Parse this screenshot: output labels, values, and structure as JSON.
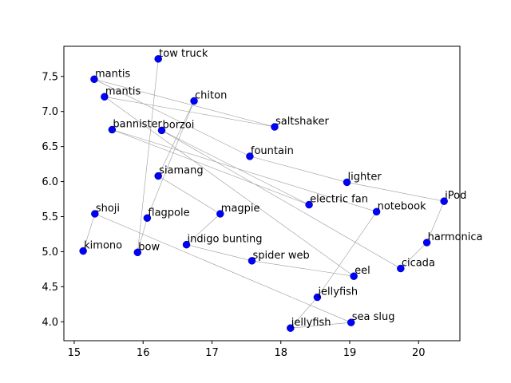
{
  "chart_data": {
    "type": "scatter",
    "title": "",
    "xlabel": "",
    "ylabel": "",
    "xlim": [
      14.85,
      20.6
    ],
    "ylim": [
      3.73,
      7.93
    ],
    "xticks": [
      15,
      16,
      17,
      18,
      19,
      20
    ],
    "yticks": [
      4.0,
      4.5,
      5.0,
      5.5,
      6.0,
      6.5,
      7.0,
      7.5
    ],
    "xtick_labels": [
      "15",
      "16",
      "17",
      "18",
      "19",
      "20"
    ],
    "ytick_labels": [
      "4.0",
      "4.5",
      "5.0",
      "5.5",
      "6.0",
      "6.5",
      "7.0",
      "7.5"
    ],
    "grid": false,
    "point_color": "#0000ff",
    "line_color": "#9a9a9a",
    "points": [
      {
        "label": "tow truck",
        "x": 16.22,
        "y": 7.75
      },
      {
        "label": "bow",
        "x": 15.92,
        "y": 4.99
      },
      {
        "label": "flagpole",
        "x": 16.06,
        "y": 5.48
      },
      {
        "label": "chiton",
        "x": 16.74,
        "y": 7.15
      },
      {
        "label": "siamang",
        "x": 16.22,
        "y": 6.08
      },
      {
        "label": "magpie",
        "x": 17.12,
        "y": 5.54
      },
      {
        "label": "indigo bunting",
        "x": 16.63,
        "y": 5.1
      },
      {
        "label": "spider web",
        "x": 17.58,
        "y": 4.87
      },
      {
        "label": "eel",
        "x": 19.06,
        "y": 4.65
      },
      {
        "label": "mantis",
        "x": 15.44,
        "y": 7.21
      },
      {
        "label": "saltshaker",
        "x": 17.91,
        "y": 6.78
      },
      {
        "label": "mantis",
        "x": 15.29,
        "y": 7.46
      },
      {
        "label": "fountain",
        "x": 17.55,
        "y": 6.36
      },
      {
        "label": "lighter",
        "x": 18.96,
        "y": 5.99
      },
      {
        "label": "iPod",
        "x": 20.37,
        "y": 5.72
      },
      {
        "label": "harmonica",
        "x": 20.12,
        "y": 5.13
      },
      {
        "label": "cicada",
        "x": 19.74,
        "y": 4.76
      },
      {
        "label": "borzoi",
        "x": 16.27,
        "y": 6.73
      },
      {
        "label": "electric fan",
        "x": 18.41,
        "y": 5.67
      },
      {
        "label": "bannister",
        "x": 15.55,
        "y": 6.74
      },
      {
        "label": "notebook",
        "x": 19.39,
        "y": 5.57
      },
      {
        "label": "jellyfish",
        "x": 18.53,
        "y": 4.35
      },
      {
        "label": "jellyfish",
        "x": 18.14,
        "y": 3.91
      },
      {
        "label": "sea slug",
        "x": 19.02,
        "y": 3.99
      },
      {
        "label": "shoji",
        "x": 15.3,
        "y": 5.54
      },
      {
        "label": "kimono",
        "x": 15.13,
        "y": 5.01
      }
    ],
    "path_order": [
      "tow truck",
      "bow",
      "flagpole",
      "chiton",
      "siamang",
      "magpie",
      "indigo bunting",
      "spider web",
      "eel",
      "mantis",
      "saltshaker",
      "mantis",
      "fountain",
      "lighter",
      "iPod",
      "harmonica",
      "cicada",
      "borzoi",
      "electric fan",
      "bannister",
      "notebook",
      "jellyfish",
      "jellyfish",
      "sea slug",
      "shoji",
      "kimono"
    ]
  }
}
